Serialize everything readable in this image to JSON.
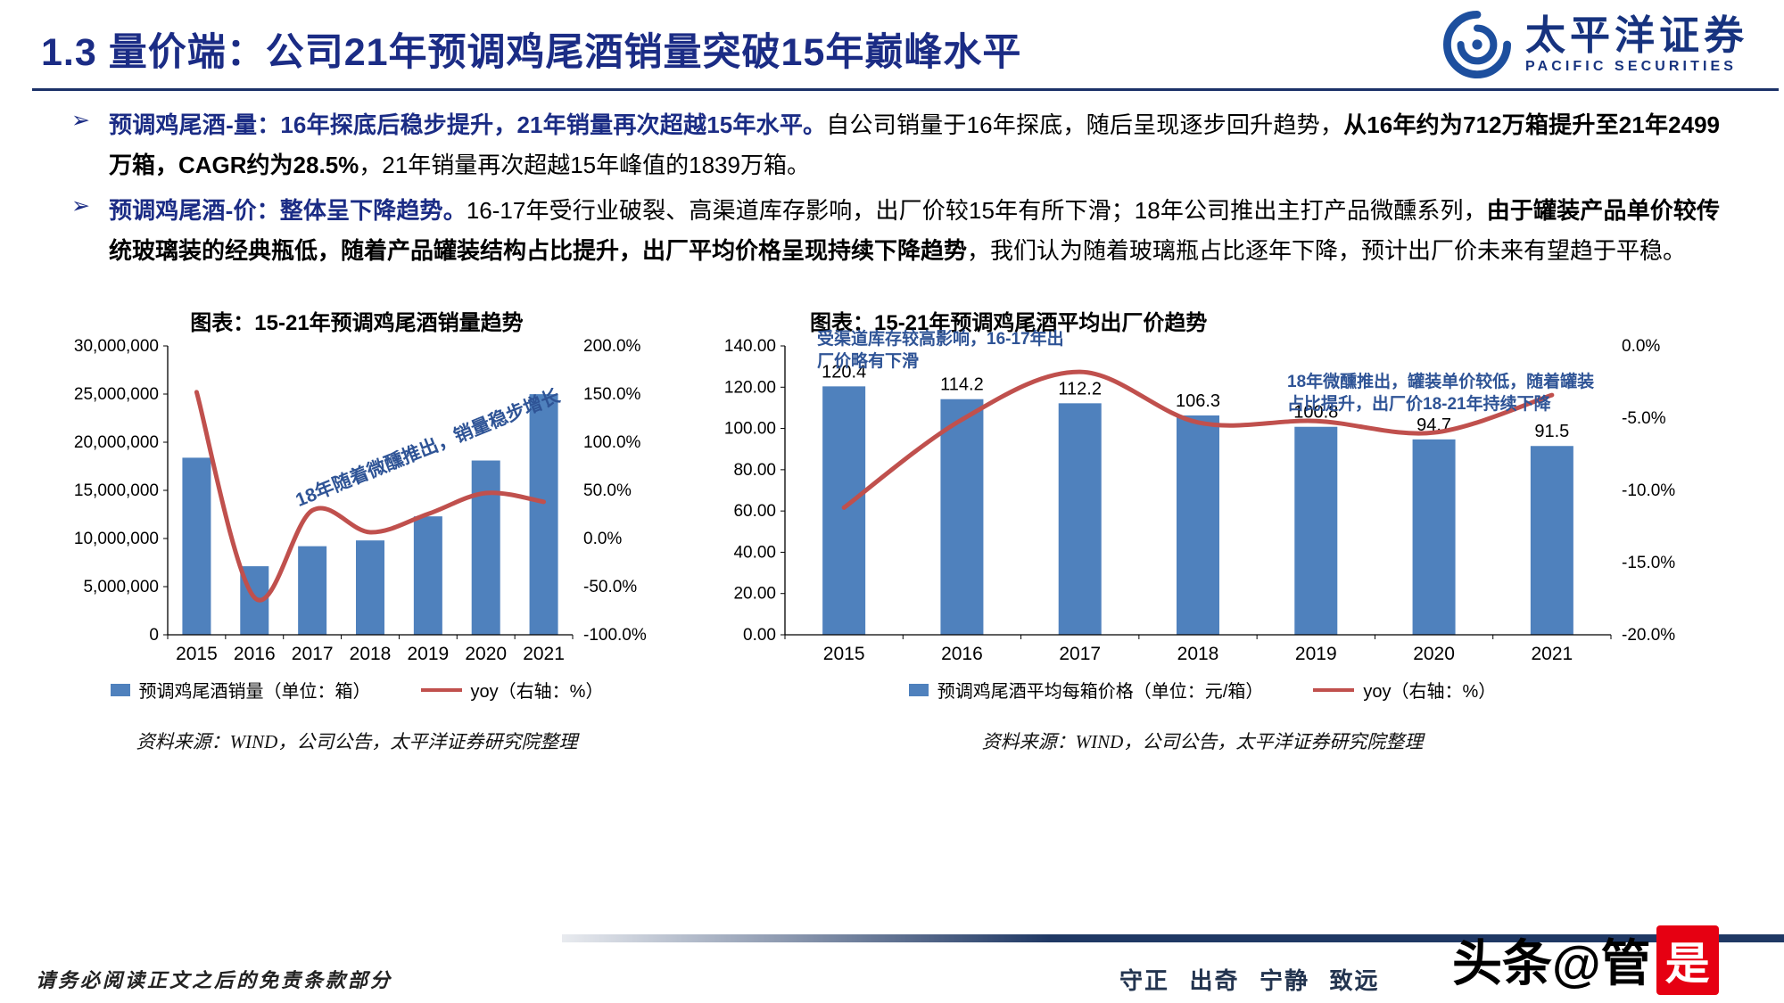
{
  "header": {
    "title": "1.3 量价端：公司21年预调鸡尾酒销量突破15年巅峰水平",
    "logo": {
      "cn": "太平洋证券",
      "en": "PACIFIC SECURITIES"
    }
  },
  "bullets": [
    {
      "segments": [
        {
          "text": "预调鸡尾酒-量：16年探底后稳步提升，21年销量再次超越15年水平。",
          "style": "bluebold"
        },
        {
          "text": "自公司销量于16年探底，随后呈现逐步回升趋势，",
          "style": "normal"
        },
        {
          "text": "从16年约为712万箱提升至21年2499万箱，CAGR约为28.5%",
          "style": "bold"
        },
        {
          "text": "，21年销量再次超越15年峰值的1839万箱。",
          "style": "normal"
        }
      ]
    },
    {
      "segments": [
        {
          "text": "预调鸡尾酒-价：整体呈下降趋势。",
          "style": "bluebold"
        },
        {
          "text": "16-17年受行业破裂、高渠道库存影响，出厂价较15年有所下滑；18年公司推出主打产品微醺系列，",
          "style": "normal"
        },
        {
          "text": "由于罐装产品单价较传统玻璃装的经典瓶低，随着产品罐装结构占比提升，出厂平均价格呈现持续下降趋势",
          "style": "bold"
        },
        {
          "text": "，我们认为随着玻璃瓶占比逐年下降，预计出厂价未来有望趋于平稳。",
          "style": "normal"
        }
      ]
    }
  ],
  "chart_data": [
    {
      "id": "sales-volume",
      "type": "bar+line",
      "title": "图表：15-21年预调鸡尾酒销量趋势",
      "categories": [
        "2015",
        "2016",
        "2017",
        "2018",
        "2019",
        "2020",
        "2021"
      ],
      "bars": {
        "label": "预调鸡尾酒销量（单位：箱）",
        "color": "#4f81bd",
        "values": [
          18390000,
          7120000,
          9200000,
          9800000,
          12300000,
          18100000,
          24990000
        ]
      },
      "line": {
        "label": "yoy（右轴：%）",
        "color": "#c0504d",
        "values": [
          152,
          -61.3,
          29.2,
          6.5,
          25.5,
          47.2,
          38.1
        ]
      },
      "left_axis": {
        "min": 0,
        "max": 30000000,
        "ticks": [
          "0",
          "5,000,000",
          "10,000,000",
          "15,000,000",
          "20,000,000",
          "25,000,000",
          "30,000,000"
        ]
      },
      "right_axis": {
        "min": -100,
        "max": 200,
        "ticks": [
          "-100.0%",
          "-50.0%",
          "0.0%",
          "50.0%",
          "100.0%",
          "150.0%",
          "200.0%"
        ]
      },
      "annotations": [
        {
          "text": "18年随着微醺推出，销量稳步增长"
        }
      ],
      "source": "资料来源：WIND，公司公告，太平洋证券研究院整理"
    },
    {
      "id": "avg-price",
      "type": "bar+line",
      "title": "图表：15-21年预调鸡尾酒平均出厂价趋势",
      "categories": [
        "2015",
        "2016",
        "2017",
        "2018",
        "2019",
        "2020",
        "2021"
      ],
      "bars": {
        "label": "预调鸡尾酒平均每箱价格（单位：元/箱）",
        "color": "#4f81bd",
        "values": [
          120.4,
          114.2,
          112.2,
          106.3,
          100.8,
          94.7,
          91.5
        ],
        "labels": [
          "120.4",
          "114.2",
          "112.2",
          "106.3",
          "100.8",
          "94.7",
          "91.5"
        ]
      },
      "line": {
        "label": "yoy（右轴：%）",
        "color": "#c0504d",
        "values": [
          -11.2,
          -5.1,
          -1.8,
          -5.3,
          -5.2,
          -6.0,
          -3.4
        ]
      },
      "left_axis": {
        "min": 0,
        "max": 140,
        "ticks": [
          "0.00",
          "20.00",
          "40.00",
          "60.00",
          "80.00",
          "100.00",
          "120.00",
          "140.00"
        ]
      },
      "right_axis": {
        "min": -20,
        "max": 0,
        "ticks": [
          "-20.0%",
          "-15.0%",
          "-10.0%",
          "-5.0%",
          "0.0%"
        ]
      },
      "annotations": [
        {
          "text": "受渠道库存较高影响，16-17年出厂价略有下滑"
        },
        {
          "text": "18年微醺推出，罐装单价较低，随着罐装占比提升，出厂价18-21年持续下降"
        }
      ],
      "source": "资料来源：WIND，公司公告，太平洋证券研究院整理"
    }
  ],
  "footer": {
    "disclaimer": "请务必阅读正文之后的免责条款部分",
    "motto": "守正 出奇 宁静 致远",
    "watermark_prefix": "头条@管",
    "watermark_highlight": "是"
  },
  "colors": {
    "navy": "#1b2c85",
    "bar_blue": "#4f81bd",
    "line_red": "#c0504d",
    "annotation_blue": "#2f5496",
    "watermark_red": "#e60012"
  }
}
